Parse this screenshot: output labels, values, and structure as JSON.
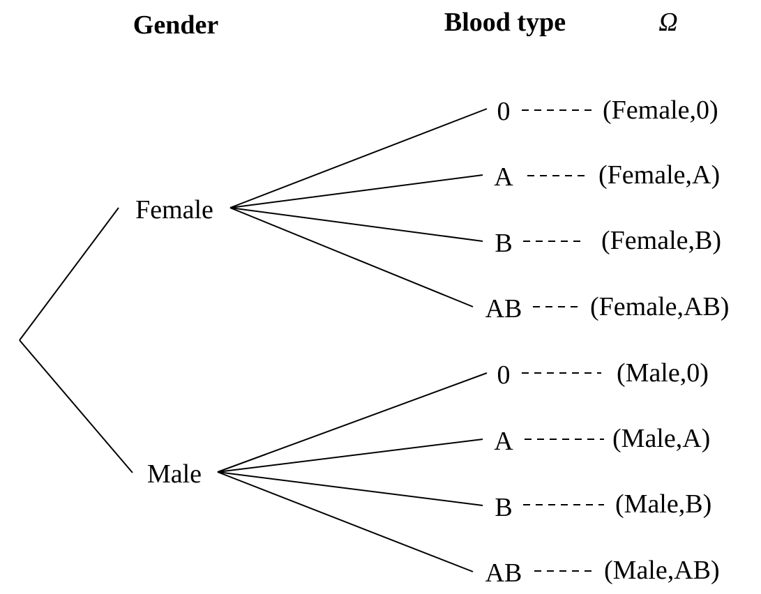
{
  "headers": {
    "gender": "Gender",
    "blood_type": "Blood type",
    "omega": "Ω"
  },
  "genders": [
    {
      "label": "Female",
      "outcomes": [
        {
          "blood": "0",
          "pair": "(Female,0)"
        },
        {
          "blood": "A",
          "pair": "(Female,A)"
        },
        {
          "blood": "B",
          "pair": "(Female,B)"
        },
        {
          "blood": "AB",
          "pair": "(Female,AB)"
        }
      ]
    },
    {
      "label": "Male",
      "outcomes": [
        {
          "blood": "0",
          "pair": "(Male,0)"
        },
        {
          "blood": "A",
          "pair": "(Male,A)"
        },
        {
          "blood": "B",
          "pair": "(Male,B)"
        },
        {
          "blood": "AB",
          "pair": "(Male,AB)"
        }
      ]
    }
  ]
}
